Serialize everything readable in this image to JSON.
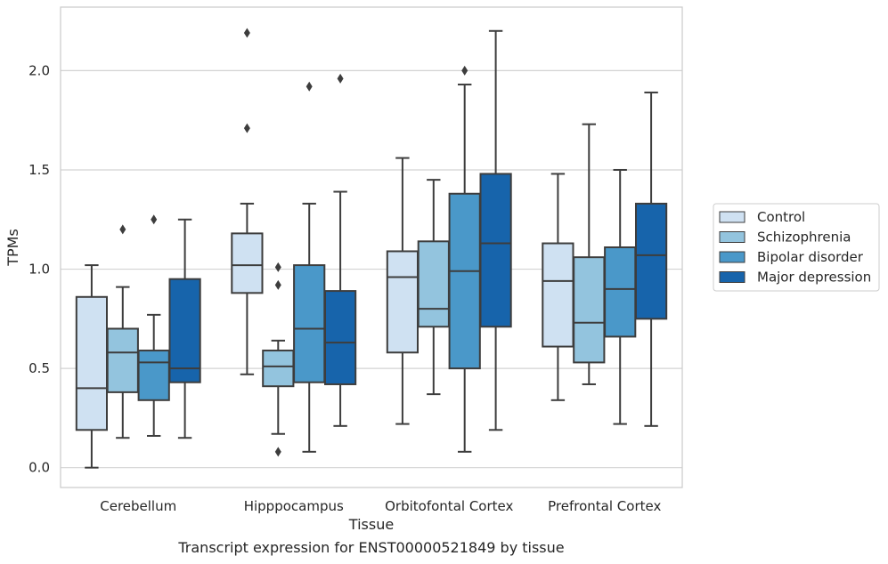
{
  "caption": "Transcript expression for ENST00000521849 by tissue",
  "chart_data": {
    "type": "boxplot",
    "title": "",
    "xlabel": "Tissue",
    "ylabel": "TPMs",
    "ylim": [
      -0.1,
      2.32
    ],
    "yticks": [
      0.0,
      0.5,
      1.0,
      1.5,
      2.0
    ],
    "ytick_labels": [
      "0.0",
      "0.5",
      "1.0",
      "1.5",
      "2.0"
    ],
    "grid": "horizontal",
    "legend_position": "right",
    "categories": [
      "Cerebellum",
      "Hipppocampus",
      "Orbitofontal Cortex",
      "Prefrontal Cortex"
    ],
    "colors": {
      "Control": "#cfe1f2",
      "Schizophrenia": "#93c4de",
      "Bipolar disorder": "#4a98c9",
      "Major depression": "#1764ab",
      "edge": "#3d3d3d",
      "grid": "#d3d3d3"
    },
    "series": [
      {
        "name": "Control",
        "boxes": [
          {
            "whisker_low": 0.0,
            "q1": 0.19,
            "median": 0.4,
            "q3": 0.86,
            "whisker_high": 1.02,
            "outliers": []
          },
          {
            "whisker_low": 0.47,
            "q1": 0.88,
            "median": 1.02,
            "q3": 1.18,
            "whisker_high": 1.33,
            "outliers": [
              1.71,
              2.19
            ]
          },
          {
            "whisker_low": 0.22,
            "q1": 0.58,
            "median": 0.96,
            "q3": 1.09,
            "whisker_high": 1.56,
            "outliers": []
          },
          {
            "whisker_low": 0.34,
            "q1": 0.61,
            "median": 0.94,
            "q3": 1.13,
            "whisker_high": 1.48,
            "outliers": []
          }
        ]
      },
      {
        "name": "Schizophrenia",
        "boxes": [
          {
            "whisker_low": 0.15,
            "q1": 0.38,
            "median": 0.58,
            "q3": 0.7,
            "whisker_high": 0.91,
            "outliers": [
              1.2
            ]
          },
          {
            "whisker_low": 0.17,
            "q1": 0.41,
            "median": 0.51,
            "q3": 0.59,
            "whisker_high": 0.64,
            "outliers": [
              0.92,
              1.01,
              0.08
            ]
          },
          {
            "whisker_low": 0.37,
            "q1": 0.71,
            "median": 0.8,
            "q3": 1.14,
            "whisker_high": 1.45,
            "outliers": []
          },
          {
            "whisker_low": 0.42,
            "q1": 0.53,
            "median": 0.73,
            "q3": 1.06,
            "whisker_high": 1.73,
            "outliers": []
          }
        ]
      },
      {
        "name": "Bipolar disorder",
        "boxes": [
          {
            "whisker_low": 0.16,
            "q1": 0.34,
            "median": 0.53,
            "q3": 0.59,
            "whisker_high": 0.77,
            "outliers": [
              1.25
            ]
          },
          {
            "whisker_low": 0.08,
            "q1": 0.43,
            "median": 0.7,
            "q3": 1.02,
            "whisker_high": 1.33,
            "outliers": [
              1.92
            ]
          },
          {
            "whisker_low": 0.08,
            "q1": 0.5,
            "median": 0.99,
            "q3": 1.38,
            "whisker_high": 1.93,
            "outliers": [
              2.0
            ]
          },
          {
            "whisker_low": 0.22,
            "q1": 0.66,
            "median": 0.9,
            "q3": 1.11,
            "whisker_high": 1.5,
            "outliers": []
          }
        ]
      },
      {
        "name": "Major depression",
        "boxes": [
          {
            "whisker_low": 0.15,
            "q1": 0.43,
            "median": 0.5,
            "q3": 0.95,
            "whisker_high": 1.25,
            "outliers": []
          },
          {
            "whisker_low": 0.21,
            "q1": 0.42,
            "median": 0.63,
            "q3": 0.89,
            "whisker_high": 1.39,
            "outliers": [
              1.96
            ]
          },
          {
            "whisker_low": 0.19,
            "q1": 0.71,
            "median": 1.13,
            "q3": 1.48,
            "whisker_high": 2.2,
            "outliers": []
          },
          {
            "whisker_low": 0.21,
            "q1": 0.75,
            "median": 1.07,
            "q3": 1.33,
            "whisker_high": 1.89,
            "outliers": []
          }
        ]
      }
    ]
  }
}
